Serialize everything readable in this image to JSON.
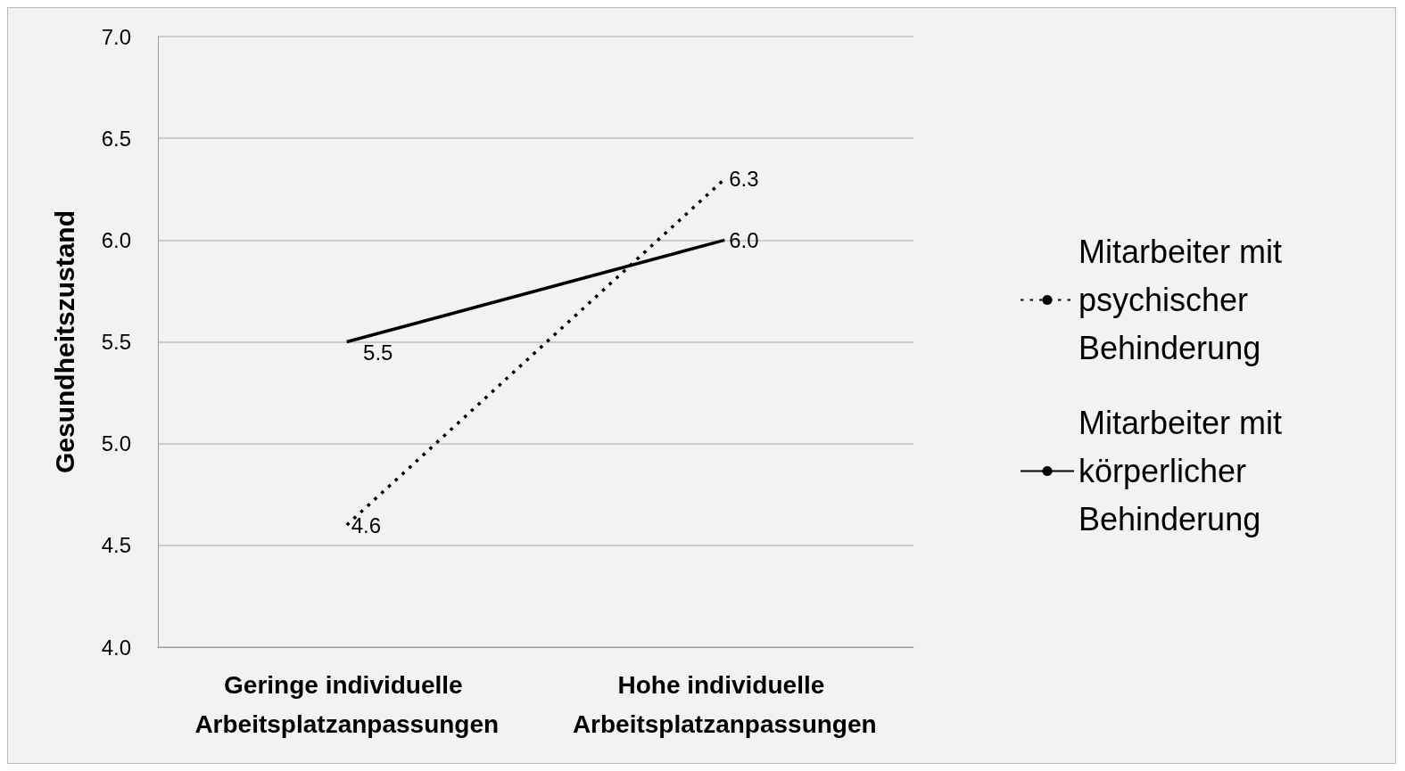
{
  "chart_data": {
    "type": "line",
    "ylabel": "Gesundheitszustand",
    "categories": [
      "Geringe individuelle Arbeitsplatzanpassungen",
      "Hohe individuelle Arbeitsplatzanpassungen"
    ],
    "series": [
      {
        "name": "Mitarbeiter mit psychischer Behinderung",
        "color": "#000000",
        "line_style": "dotted",
        "values": [
          4.6,
          6.3
        ],
        "value_labels": [
          "4.6",
          "6.3"
        ]
      },
      {
        "name": "Mitarbeiter mit körperlicher Behinderung",
        "color": "#000000",
        "line_style": "solid",
        "values": [
          5.5,
          6.0
        ],
        "value_labels": [
          "5.5",
          "6.0"
        ]
      }
    ],
    "ylim": [
      4,
      7
    ],
    "yticks": [
      {
        "value": 4,
        "label": "4.0"
      },
      {
        "value": 4.5,
        "label": "4.5"
      },
      {
        "value": 5,
        "label": "5.0"
      },
      {
        "value": 5.5,
        "label": "5.5"
      },
      {
        "value": 6,
        "label": "6.0"
      },
      {
        "value": 6.5,
        "label": "6.5"
      },
      {
        "value": 7,
        "label": "7.0"
      }
    ],
    "grid": "y",
    "legend": "right"
  }
}
